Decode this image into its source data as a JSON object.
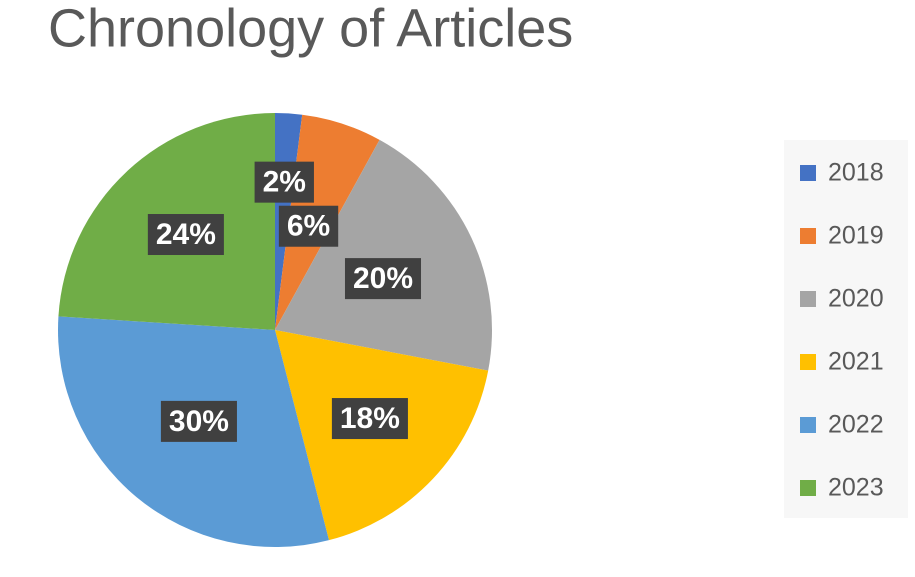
{
  "chart_data": {
    "type": "pie",
    "title": "Chronology of Articles",
    "categories": [
      "2018",
      "2019",
      "2020",
      "2021",
      "2022",
      "2023"
    ],
    "values": [
      2,
      6,
      20,
      18,
      30,
      24
    ],
    "value_labels": [
      "2%",
      "6%",
      "20%",
      "18%",
      "30%",
      "24%"
    ],
    "colors": [
      "#4472c4",
      "#ed7d31",
      "#a5a5a5",
      "#ffc000",
      "#5b9bd5",
      "#70ad47"
    ],
    "legend": "right"
  }
}
